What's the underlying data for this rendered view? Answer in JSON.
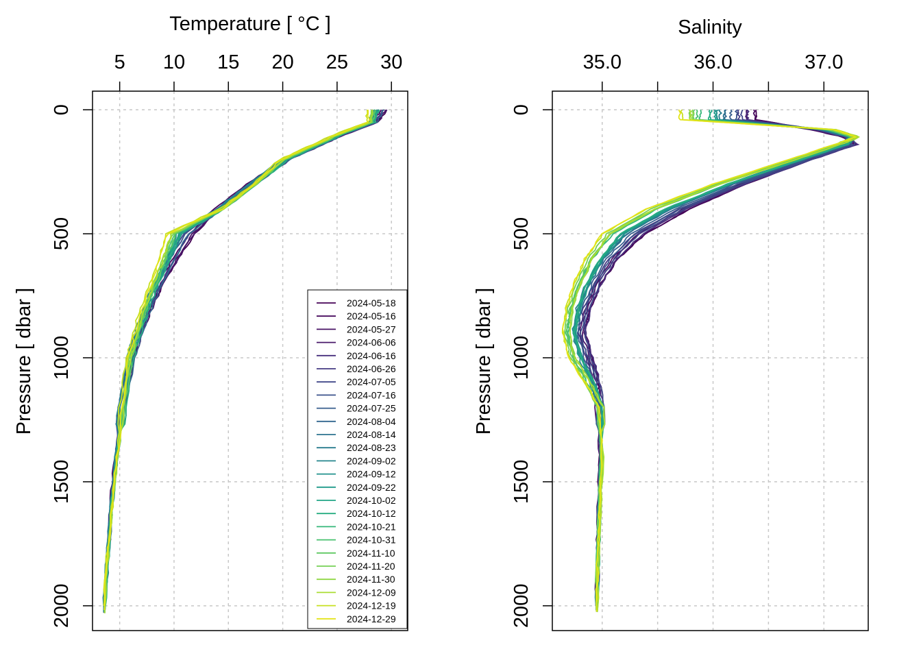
{
  "chart_data": [
    {
      "type": "line",
      "panel": "temperature",
      "title": "",
      "xlabel": "Temperature [ °C ]",
      "ylabel": "Pressure [ dbar ]",
      "xlim": [
        2.5,
        31.5
      ],
      "ylim": [
        2100,
        -75
      ],
      "y_reversed": true,
      "x_axis_position": "top",
      "xticks": [
        5,
        10,
        15,
        20,
        25,
        30
      ],
      "xtick_labels": [
        "5",
        "10",
        "15",
        "20",
        "25",
        "30"
      ],
      "yticks": [
        0,
        500,
        1000,
        1500,
        2000
      ],
      "ytick_labels": [
        "0",
        "500",
        "1000",
        "1500",
        "2000"
      ],
      "grid": true,
      "legend": "bottom-right",
      "profile_pressure": [
        0,
        50,
        100,
        150,
        200,
        300,
        400,
        500,
        600,
        700,
        800,
        900,
        1000,
        1200,
        1400,
        1600,
        1800,
        2000
      ],
      "profile_early": [
        29.5,
        28.5,
        25.5,
        23.0,
        20.5,
        17.0,
        14.0,
        11.8,
        10.3,
        8.9,
        7.8,
        6.9,
        6.1,
        5.2,
        4.6,
        4.2,
        3.9,
        3.6
      ],
      "profile_late": [
        28.0,
        28.0,
        25.0,
        22.5,
        20.0,
        17.5,
        14.5,
        9.5,
        8.8,
        8.0,
        7.2,
        6.5,
        5.9,
        5.3,
        4.8,
        4.3,
        3.9,
        3.6
      ]
    },
    {
      "type": "line",
      "panel": "salinity",
      "title": "",
      "xlabel": "Salinity",
      "ylabel": "Pressure [ dbar ]",
      "xlim": [
        34.55,
        37.4
      ],
      "ylim": [
        2100,
        -75
      ],
      "y_reversed": true,
      "x_axis_position": "top",
      "xticks": [
        35.0,
        35.5,
        36.0,
        36.5,
        37.0
      ],
      "xtick_labels": [
        "35.0",
        "",
        "36.0",
        "",
        "37.0"
      ],
      "yticks": [
        0,
        500,
        1000,
        1500,
        2000
      ],
      "ytick_labels": [
        "0",
        "500",
        "1000",
        "1500",
        "2000"
      ],
      "grid": true,
      "legend": "none",
      "profile_pressure": [
        0,
        40,
        80,
        110,
        140,
        200,
        300,
        400,
        500,
        600,
        700,
        800,
        900,
        1000,
        1100,
        1200,
        1400,
        1600,
        1800,
        2000
      ],
      "profile_early": [
        36.4,
        36.4,
        36.9,
        37.2,
        37.3,
        36.9,
        36.3,
        35.8,
        35.4,
        35.15,
        35.0,
        34.9,
        34.85,
        34.92,
        34.97,
        34.98,
        34.98,
        34.97,
        34.96,
        34.95
      ],
      "profile_late": [
        35.7,
        35.7,
        37.1,
        37.3,
        37.1,
        36.7,
        36.0,
        35.4,
        35.0,
        34.85,
        34.75,
        34.68,
        34.65,
        34.7,
        34.85,
        34.98,
        35.0,
        34.98,
        34.96,
        34.95
      ]
    }
  ],
  "legend": {
    "entries": [
      {
        "label": "2024-05-18",
        "color": "#440154"
      },
      {
        "label": "2024-05-16",
        "color": "#46085c"
      },
      {
        "label": "2024-05-27",
        "color": "#471164"
      },
      {
        "label": "2024-06-06",
        "color": "#48186a"
      },
      {
        "label": "2024-06-16",
        "color": "#472f7d"
      },
      {
        "label": "2024-06-26",
        "color": "#443983"
      },
      {
        "label": "2024-07-05",
        "color": "#404688"
      },
      {
        "label": "2024-07-16",
        "color": "#3b528b"
      },
      {
        "label": "2024-07-25",
        "color": "#365c8d"
      },
      {
        "label": "2024-08-04",
        "color": "#31668e"
      },
      {
        "label": "2024-08-14",
        "color": "#2c728e"
      },
      {
        "label": "2024-08-23",
        "color": "#287c8e"
      },
      {
        "label": "2024-09-02",
        "color": "#24868e"
      },
      {
        "label": "2024-09-12",
        "color": "#21918c"
      },
      {
        "label": "2024-09-22",
        "color": "#1f9a8a"
      },
      {
        "label": "2024-10-02",
        "color": "#20a486"
      },
      {
        "label": "2024-10-12",
        "color": "#27ad81"
      },
      {
        "label": "2024-10-21",
        "color": "#35b779"
      },
      {
        "label": "2024-10-31",
        "color": "#47c16e"
      },
      {
        "label": "2024-11-10",
        "color": "#5ec962"
      },
      {
        "label": "2024-11-20",
        "color": "#75d054"
      },
      {
        "label": "2024-11-30",
        "color": "#8fd744"
      },
      {
        "label": "2024-12-09",
        "color": "#aadc32"
      },
      {
        "label": "2024-12-19",
        "color": "#c7e020"
      },
      {
        "label": "2024-12-29",
        "color": "#e3e418"
      }
    ]
  }
}
